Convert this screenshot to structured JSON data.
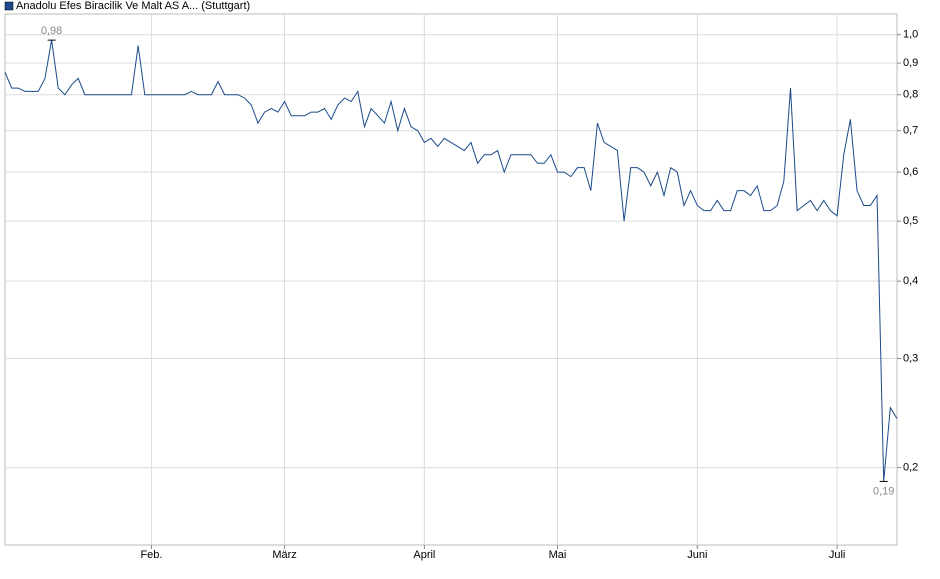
{
  "chart_data": {
    "type": "line",
    "log_scale": true,
    "grid": true,
    "legend": "top-left",
    "series": [
      {
        "name": "Anadolu Efes Biracilik Ve Malt AS A... (Stuttgart)",
        "color": "#1c4a8a",
        "values": [
          0.87,
          0.82,
          0.82,
          0.81,
          0.81,
          0.81,
          0.85,
          0.98,
          0.82,
          0.8,
          0.83,
          0.85,
          0.8,
          0.8,
          0.8,
          0.8,
          0.8,
          0.8,
          0.8,
          0.8,
          0.96,
          0.8,
          0.8,
          0.8,
          0.8,
          0.8,
          0.8,
          0.8,
          0.81,
          0.8,
          0.8,
          0.8,
          0.84,
          0.8,
          0.8,
          0.8,
          0.79,
          0.77,
          0.72,
          0.75,
          0.76,
          0.75,
          0.78,
          0.74,
          0.74,
          0.74,
          0.75,
          0.75,
          0.76,
          0.73,
          0.77,
          0.79,
          0.78,
          0.81,
          0.71,
          0.76,
          0.74,
          0.72,
          0.78,
          0.7,
          0.76,
          0.71,
          0.7,
          0.67,
          0.68,
          0.66,
          0.68,
          0.67,
          0.66,
          0.65,
          0.67,
          0.62,
          0.64,
          0.64,
          0.65,
          0.6,
          0.64,
          0.64,
          0.64,
          0.64,
          0.62,
          0.62,
          0.64,
          0.6,
          0.6,
          0.59,
          0.61,
          0.61,
          0.56,
          0.72,
          0.67,
          0.66,
          0.65,
          0.5,
          0.61,
          0.61,
          0.6,
          0.57,
          0.6,
          0.55,
          0.61,
          0.6,
          0.53,
          0.56,
          0.53,
          0.52,
          0.52,
          0.54,
          0.52,
          0.52,
          0.56,
          0.56,
          0.55,
          0.57,
          0.52,
          0.52,
          0.53,
          0.58,
          0.82,
          0.52,
          0.53,
          0.54,
          0.52,
          0.54,
          0.52,
          0.51,
          0.64,
          0.73,
          0.56,
          0.53,
          0.53,
          0.55,
          0.19,
          0.25,
          0.24
        ],
        "value_labels": [
          null,
          null,
          null,
          null,
          null,
          null,
          null,
          "0,98",
          null,
          null,
          null,
          null,
          null,
          null,
          null,
          null,
          null,
          null,
          null,
          null,
          null,
          null,
          null,
          null,
          null,
          null,
          null,
          null,
          null,
          null,
          null,
          null,
          null,
          null,
          null,
          null,
          null,
          null,
          null,
          null,
          null,
          null,
          null,
          null,
          null,
          null,
          null,
          null,
          null,
          null,
          null,
          null,
          null,
          null,
          null,
          null,
          null,
          null,
          null,
          null,
          null,
          null,
          null,
          null,
          null,
          null,
          null,
          null,
          null,
          null,
          null,
          null,
          null,
          null,
          null,
          null,
          null,
          null,
          null,
          null,
          null,
          null,
          null,
          null,
          null,
          null,
          null,
          null,
          null,
          null,
          null,
          null,
          null,
          null,
          null,
          null,
          null,
          null,
          null,
          null,
          null,
          null,
          null,
          null,
          null,
          null,
          null,
          null,
          null,
          null,
          null,
          null,
          null,
          null,
          null,
          null,
          null,
          null,
          null,
          null,
          null,
          null,
          null,
          null,
          null,
          null,
          null,
          null,
          null,
          null,
          null,
          null,
          "0,19",
          null,
          null
        ]
      }
    ],
    "xlim": [
      0,
      134
    ],
    "xticks": [
      {
        "value": 22,
        "label": "Feb."
      },
      {
        "value": 42,
        "label": "März"
      },
      {
        "value": 63,
        "label": "April"
      },
      {
        "value": 83,
        "label": "Mai"
      },
      {
        "value": 104,
        "label": "Juni"
      },
      {
        "value": 125,
        "label": "Juli"
      }
    ],
    "ylim": [
      0.15,
      1.08
    ],
    "yticks": [
      {
        "value": 0.2,
        "label": "0,2"
      },
      {
        "value": 0.3,
        "label": "0,3"
      },
      {
        "value": 0.4,
        "label": "0,4"
      },
      {
        "value": 0.5,
        "label": "0,5"
      },
      {
        "value": 0.6,
        "label": "0,6"
      },
      {
        "value": 0.7,
        "label": "0,7"
      },
      {
        "value": 0.8,
        "label": "0,8"
      },
      {
        "value": 0.9,
        "label": "0,9"
      },
      {
        "value": 1.0,
        "label": "1,0"
      }
    ]
  }
}
